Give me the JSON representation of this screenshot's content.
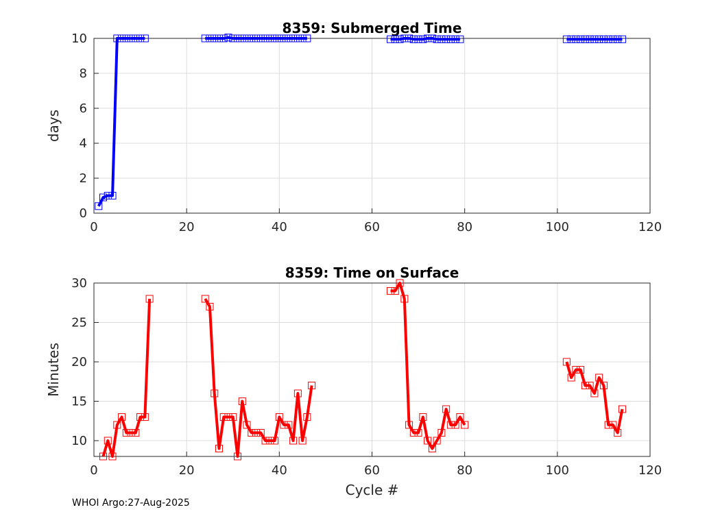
{
  "chart_data": [
    {
      "type": "line",
      "title": "8359: Submerged Time",
      "xlabel": "",
      "ylabel": "days",
      "xlim": [
        0,
        120
      ],
      "ylim": [
        0,
        10
      ],
      "xticks": [
        0,
        20,
        40,
        60,
        80,
        100,
        120
      ],
      "yticks": [
        0,
        2,
        4,
        6,
        8,
        10
      ],
      "grid": true,
      "color": "#0000ff",
      "segments": [
        {
          "x": [
            1,
            2,
            3,
            4,
            5,
            6,
            7,
            8,
            9,
            10,
            11
          ],
          "y": [
            0.4,
            0.9,
            1,
            1,
            10,
            10,
            10,
            10,
            10,
            10,
            10
          ]
        },
        {
          "x": [
            24,
            25,
            26,
            27,
            28,
            29,
            30,
            31,
            32,
            33,
            34,
            35,
            36,
            37,
            38,
            39,
            40,
            41,
            42,
            43,
            44,
            45,
            46
          ],
          "y": [
            10,
            10,
            10,
            10,
            10,
            10.05,
            10,
            10,
            10,
            10,
            10,
            10,
            10,
            10,
            10,
            10,
            10,
            10,
            10,
            10,
            10,
            10,
            10
          ]
        },
        {
          "x": [
            64,
            65,
            66,
            67,
            68,
            69,
            70,
            71,
            72,
            73,
            74,
            75,
            76,
            77,
            78,
            79
          ],
          "y": [
            9.95,
            9.95,
            9.95,
            10,
            10,
            9.95,
            9.95,
            9.95,
            10,
            10,
            9.95,
            9.95,
            9.95,
            9.95,
            9.95,
            9.95
          ]
        },
        {
          "x": [
            102,
            103,
            104,
            105,
            106,
            107,
            108,
            109,
            110,
            111,
            112,
            113,
            114
          ],
          "y": [
            9.95,
            9.95,
            9.95,
            9.95,
            9.95,
            9.95,
            9.95,
            9.95,
            9.95,
            9.95,
            9.95,
            9.95,
            9.95
          ]
        }
      ]
    },
    {
      "type": "line",
      "title": "8359: Time on Surface",
      "xlabel": "Cycle #",
      "ylabel": "Minutes",
      "xlim": [
        0,
        120
      ],
      "ylim": [
        8,
        30
      ],
      "xticks": [
        0,
        20,
        40,
        60,
        80,
        100,
        120
      ],
      "yticks": [
        10,
        15,
        20,
        25,
        30
      ],
      "grid": true,
      "color": "#ff0000",
      "segments": [
        {
          "x": [
            2,
            3,
            4,
            5,
            6,
            7,
            8,
            9,
            10,
            11,
            12
          ],
          "y": [
            8,
            10,
            8,
            12,
            13,
            11,
            11,
            11,
            13,
            13,
            28
          ]
        },
        {
          "x": [
            24,
            25,
            26,
            27,
            28,
            29,
            30,
            31,
            32,
            33,
            34,
            35,
            36,
            37,
            38,
            39,
            40,
            41,
            42,
            43,
            44,
            45,
            46,
            47
          ],
          "y": [
            28,
            27,
            16,
            9,
            13,
            13,
            13,
            8,
            15,
            12,
            11,
            11,
            11,
            10,
            10,
            10,
            13,
            12,
            12,
            10,
            16,
            10,
            13,
            17
          ]
        },
        {
          "x": [
            64,
            65,
            66,
            67,
            68,
            69,
            70,
            71,
            72,
            73,
            74,
            75,
            76,
            77,
            78,
            79,
            80
          ],
          "y": [
            29,
            29,
            30,
            28,
            12,
            11,
            11,
            13,
            10,
            9,
            10,
            11,
            14,
            12,
            12,
            13,
            12
          ]
        },
        {
          "x": [
            102,
            103,
            104,
            105,
            106,
            107,
            108,
            109,
            110,
            111,
            112,
            113,
            114
          ],
          "y": [
            20,
            18,
            19,
            19,
            17,
            17,
            16,
            18,
            17,
            12,
            12,
            11,
            14
          ]
        }
      ]
    }
  ],
  "footer": "WHOI Argo:27-Aug-2025"
}
